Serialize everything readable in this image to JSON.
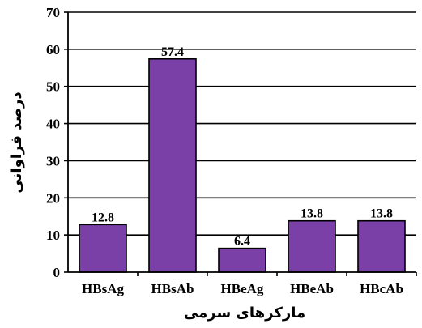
{
  "chart_data": {
    "type": "bar",
    "title": "",
    "xlabel": "مارکرهای سرمی",
    "ylabel": "درصد فراوانی",
    "categories": [
      "HBsAg",
      "HBsAb",
      "HBeAg",
      "HBeAb",
      "HBcAb"
    ],
    "values": [
      12.8,
      57.4,
      6.4,
      13.8,
      13.8
    ],
    "data_labels": [
      "12.8",
      "57.4",
      "6.4",
      "13.8",
      "13.8"
    ],
    "ylim": [
      0,
      70
    ],
    "yticks": [
      0,
      10,
      20,
      30,
      40,
      50,
      60,
      70
    ],
    "grid": true,
    "legend": "none",
    "bar_color": "#7b3fa8",
    "bar_edge_color": "#000000"
  }
}
